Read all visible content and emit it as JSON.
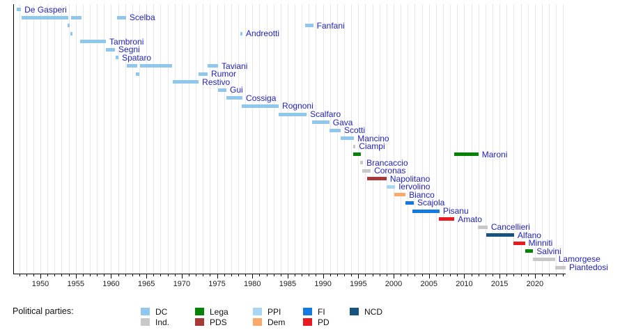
{
  "legend": {
    "title": "Political parties:",
    "entries": [
      {
        "label": "DC",
        "color": "#90c7ec",
        "row": 0,
        "col": 0
      },
      {
        "label": "Lega",
        "color": "#068206",
        "row": 0,
        "col": 1
      },
      {
        "label": "PPI",
        "color": "#a9d7f3",
        "row": 0,
        "col": 2
      },
      {
        "label": "FI",
        "color": "#147ae0",
        "row": 0,
        "col": 3
      },
      {
        "label": "NCD",
        "color": "#16537e",
        "row": 0,
        "col": 4
      },
      {
        "label": "Ind.",
        "color": "#c8c8c8",
        "row": 1,
        "col": 0
      },
      {
        "label": "PDS",
        "color": "#a93939",
        "row": 1,
        "col": 1
      },
      {
        "label": "Dem",
        "color": "#faa96b",
        "row": 1,
        "col": 2
      },
      {
        "label": "PD",
        "color": "#e8191f",
        "row": 1,
        "col": 3
      }
    ]
  },
  "chart_data": {
    "type": "gantt",
    "title": "",
    "xlabel": "",
    "ylabel": "",
    "x_axis": {
      "min_year": 1946.15,
      "max_year": 2024.35,
      "tick_labels": [
        "1950",
        "1955",
        "1960",
        "1965",
        "1970",
        "1975",
        "1980",
        "1985",
        "1990",
        "1995",
        "2000",
        "2005",
        "2010",
        "2015",
        "2020"
      ],
      "minor_tick_interval_years": 1,
      "grid": "vertical yearly"
    },
    "parties": {
      "DC": "#90c7ec",
      "Ind.": "#c8c8c8",
      "Lega": "#068206",
      "PDS": "#a93939",
      "PPI": "#a9d7f3",
      "Dem": "#faa96b",
      "FI": "#147ae0",
      "PD": "#e8191f",
      "NCD": "#16537e"
    },
    "ministers": [
      {
        "name": "De Gasperi",
        "party": "DC",
        "terms": [
          [
            1946.62,
            1947.25
          ]
        ]
      },
      {
        "name": "Scelba",
        "party": "DC",
        "terms": [
          [
            1947.32,
            1953.95
          ],
          [
            1954.35,
            1955.82
          ],
          [
            1960.85,
            1962.12
          ]
        ]
      },
      {
        "name": "Fanfani",
        "party": "DC",
        "terms": [
          [
            1953.85,
            1954.15
          ],
          [
            1987.45,
            1988.62
          ]
        ]
      },
      {
        "name": "Andreotti",
        "party": "DC",
        "terms": [
          [
            1954.25,
            1954.5
          ],
          [
            1978.3,
            1978.6
          ]
        ]
      },
      {
        "name": "Tambroni",
        "party": "DC",
        "terms": [
          [
            1955.62,
            1959.27
          ]
        ]
      },
      {
        "name": "Segni",
        "party": "DC",
        "terms": [
          [
            1959.27,
            1960.55
          ]
        ]
      },
      {
        "name": "Spataro",
        "party": "DC",
        "terms": [
          [
            1960.65,
            1961.05
          ]
        ]
      },
      {
        "name": "Taviani",
        "party": "DC",
        "terms": [
          [
            1962.22,
            1963.7
          ],
          [
            1964.1,
            1968.65
          ],
          [
            1973.67,
            1975.15
          ]
        ]
      },
      {
        "name": "Rumor",
        "party": "DC",
        "terms": [
          [
            1963.5,
            1964.0
          ],
          [
            1972.4,
            1973.67
          ]
        ]
      },
      {
        "name": "Restivo",
        "party": "DC",
        "terms": [
          [
            1968.75,
            1972.4
          ]
        ]
      },
      {
        "name": "Gui",
        "party": "DC",
        "terms": [
          [
            1975.15,
            1976.33
          ]
        ]
      },
      {
        "name": "Cossiga",
        "party": "DC",
        "terms": [
          [
            1976.33,
            1978.6
          ]
        ]
      },
      {
        "name": "Rognoni",
        "party": "DC",
        "terms": [
          [
            1978.5,
            1983.73
          ]
        ]
      },
      {
        "name": "Scalfaro",
        "party": "DC",
        "terms": [
          [
            1983.73,
            1987.68
          ]
        ]
      },
      {
        "name": "Gava",
        "party": "DC",
        "terms": [
          [
            1988.45,
            1990.9
          ]
        ]
      },
      {
        "name": "Scotti",
        "party": "DC",
        "terms": [
          [
            1990.9,
            1992.5
          ]
        ]
      },
      {
        "name": "Mancino",
        "party": "DC",
        "terms": [
          [
            1992.5,
            1994.4
          ]
        ]
      },
      {
        "name": "Ciampi",
        "party": "Ind.",
        "terms": [
          [
            1994.3,
            1994.6
          ]
        ]
      },
      {
        "name": "Maroni",
        "party": "Lega",
        "terms": [
          [
            1994.3,
            1995.35
          ],
          [
            2008.6,
            2012.0
          ]
        ]
      },
      {
        "name": "Brancaccio",
        "party": "Ind.",
        "terms": [
          [
            1995.27,
            1995.67
          ]
        ]
      },
      {
        "name": "Coronas",
        "party": "Ind.",
        "terms": [
          [
            1995.57,
            1996.75
          ]
        ]
      },
      {
        "name": "Napolitano",
        "party": "PDS",
        "terms": [
          [
            1996.27,
            1999.0
          ]
        ]
      },
      {
        "name": "Iervolino",
        "party": "PPI",
        "terms": [
          [
            1999.0,
            2000.2
          ]
        ]
      },
      {
        "name": "Bianco",
        "party": "Dem",
        "terms": [
          [
            2000.1,
            2001.68
          ]
        ]
      },
      {
        "name": "Scajola",
        "party": "FI",
        "terms": [
          [
            2001.68,
            2002.85
          ]
        ]
      },
      {
        "name": "Pisanu",
        "party": "FI",
        "terms": [
          [
            2002.7,
            2006.5
          ]
        ]
      },
      {
        "name": "Amato",
        "party": "PD",
        "terms": [
          [
            2006.4,
            2008.6
          ]
        ]
      },
      {
        "name": "Cancellieri",
        "party": "Ind.",
        "terms": [
          [
            2011.9,
            2013.3
          ]
        ]
      },
      {
        "name": "Alfano",
        "party": "NCD",
        "terms": [
          [
            2013.15,
            2017.05
          ]
        ]
      },
      {
        "name": "Minniti",
        "party": "PD",
        "terms": [
          [
            2016.95,
            2018.6
          ]
        ]
      },
      {
        "name": "Salvini",
        "party": "Lega",
        "terms": [
          [
            2018.6,
            2019.75
          ]
        ]
      },
      {
        "name": "Lamorgese",
        "party": "Ind.",
        "terms": [
          [
            2019.7,
            2022.85
          ]
        ]
      },
      {
        "name": "Piantedosi",
        "party": "Ind.",
        "terms": [
          [
            2022.85,
            2024.35
          ]
        ]
      }
    ]
  }
}
